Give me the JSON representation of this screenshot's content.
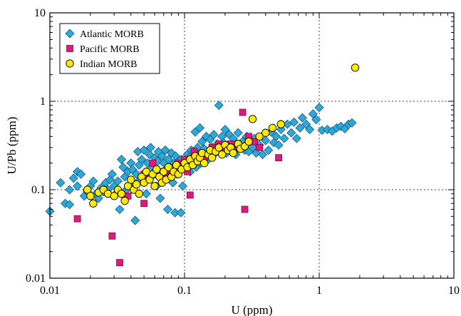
{
  "chart_data": {
    "type": "scatter",
    "title": "",
    "xlabel": "U (ppm)",
    "ylabel": "U/Pb (ppm)",
    "x_scale": "log",
    "y_scale": "log",
    "xlim": [
      0.01,
      10
    ],
    "ylim": [
      0.01,
      10
    ],
    "x_ticks": [
      "0.01",
      "0.1",
      "1",
      "10"
    ],
    "y_ticks": [
      "0.01",
      "0.1",
      "1",
      "10"
    ],
    "grid": "dotted at decades",
    "legend_position": "top-left",
    "series": [
      {
        "name": "Atlantic MORB",
        "marker": "diamond",
        "color": "#2fa8d8",
        "points": [
          [
            0.01,
            0.057
          ],
          [
            0.012,
            0.12
          ],
          [
            0.013,
            0.07
          ],
          [
            0.014,
            0.068
          ],
          [
            0.014,
            0.1
          ],
          [
            0.015,
            0.135
          ],
          [
            0.016,
            0.16
          ],
          [
            0.016,
            0.11
          ],
          [
            0.017,
            0.15
          ],
          [
            0.018,
            0.085
          ],
          [
            0.019,
            0.095
          ],
          [
            0.02,
            0.11
          ],
          [
            0.021,
            0.125
          ],
          [
            0.022,
            0.09
          ],
          [
            0.023,
            0.08
          ],
          [
            0.024,
            0.105
          ],
          [
            0.025,
            0.095
          ],
          [
            0.026,
            0.12
          ],
          [
            0.027,
            0.1
          ],
          [
            0.028,
            0.13
          ],
          [
            0.029,
            0.15
          ],
          [
            0.03,
            0.11
          ],
          [
            0.031,
            0.09
          ],
          [
            0.032,
            0.125
          ],
          [
            0.033,
            0.06
          ],
          [
            0.034,
            0.22
          ],
          [
            0.035,
            0.18
          ],
          [
            0.036,
            0.14
          ],
          [
            0.037,
            0.1
          ],
          [
            0.038,
            0.16
          ],
          [
            0.04,
            0.2
          ],
          [
            0.041,
            0.17
          ],
          [
            0.042,
            0.12
          ],
          [
            0.043,
            0.045
          ],
          [
            0.044,
            0.15
          ],
          [
            0.045,
            0.27
          ],
          [
            0.046,
            0.19
          ],
          [
            0.047,
            0.13
          ],
          [
            0.048,
            0.22
          ],
          [
            0.05,
            0.28
          ],
          [
            0.051,
            0.15
          ],
          [
            0.052,
            0.09
          ],
          [
            0.053,
            0.2
          ],
          [
            0.055,
            0.25
          ],
          [
            0.056,
            0.3
          ],
          [
            0.057,
            0.14
          ],
          [
            0.058,
            0.18
          ],
          [
            0.06,
            0.23
          ],
          [
            0.062,
            0.11
          ],
          [
            0.063,
            0.21
          ],
          [
            0.064,
            0.27
          ],
          [
            0.065,
            0.16
          ],
          [
            0.066,
            0.08
          ],
          [
            0.068,
            0.24
          ],
          [
            0.07,
            0.2
          ],
          [
            0.071,
            0.13
          ],
          [
            0.072,
            0.28
          ],
          [
            0.074,
            0.17
          ],
          [
            0.075,
            0.06
          ],
          [
            0.076,
            0.22
          ],
          [
            0.078,
            0.15
          ],
          [
            0.08,
            0.26
          ],
          [
            0.082,
            0.12
          ],
          [
            0.084,
            0.2
          ],
          [
            0.085,
            0.055
          ],
          [
            0.086,
            0.24
          ],
          [
            0.088,
            0.15
          ],
          [
            0.09,
            0.21
          ],
          [
            0.092,
            0.17
          ],
          [
            0.094,
            0.055
          ],
          [
            0.095,
            0.22
          ],
          [
            0.097,
            0.11
          ],
          [
            0.1,
            0.2
          ],
          [
            0.102,
            0.18
          ],
          [
            0.105,
            0.25
          ],
          [
            0.108,
            0.23
          ],
          [
            0.11,
            0.16
          ],
          [
            0.112,
            0.28
          ],
          [
            0.115,
            0.2
          ],
          [
            0.118,
            0.27
          ],
          [
            0.12,
            0.45
          ],
          [
            0.122,
            0.18
          ],
          [
            0.125,
            0.3
          ],
          [
            0.128,
            0.25
          ],
          [
            0.13,
            0.5
          ],
          [
            0.132,
            0.2
          ],
          [
            0.135,
            0.35
          ],
          [
            0.14,
            0.29
          ],
          [
            0.145,
            0.4
          ],
          [
            0.15,
            0.22
          ],
          [
            0.155,
            0.37
          ],
          [
            0.16,
            0.3
          ],
          [
            0.165,
            0.42
          ],
          [
            0.17,
            0.26
          ],
          [
            0.175,
            0.33
          ],
          [
            0.18,
            0.9
          ],
          [
            0.185,
            0.28
          ],
          [
            0.19,
            0.4
          ],
          [
            0.195,
            0.34
          ],
          [
            0.2,
            0.48
          ],
          [
            0.205,
            0.26
          ],
          [
            0.21,
            0.32
          ],
          [
            0.215,
            0.42
          ],
          [
            0.22,
            0.3
          ],
          [
            0.23,
            0.38
          ],
          [
            0.24,
            0.25
          ],
          [
            0.25,
            0.44
          ],
          [
            0.26,
            0.31
          ],
          [
            0.27,
            0.35
          ],
          [
            0.28,
            0.28
          ],
          [
            0.29,
            0.4
          ],
          [
            0.3,
            0.27
          ],
          [
            0.31,
            0.35
          ],
          [
            0.32,
            0.3
          ],
          [
            0.33,
            0.38
          ],
          [
            0.34,
            0.26
          ],
          [
            0.36,
            0.32
          ],
          [
            0.38,
            0.25
          ],
          [
            0.4,
            0.36
          ],
          [
            0.42,
            0.28
          ],
          [
            0.44,
            0.45
          ],
          [
            0.46,
            0.34
          ],
          [
            0.48,
            0.4
          ],
          [
            0.5,
            0.32
          ],
          [
            0.52,
            0.48
          ],
          [
            0.55,
            0.38
          ],
          [
            0.58,
            0.55
          ],
          [
            0.62,
            0.44
          ],
          [
            0.65,
            0.58
          ],
          [
            0.68,
            0.38
          ],
          [
            0.72,
            0.5
          ],
          [
            0.75,
            0.65
          ],
          [
            0.8,
            0.55
          ],
          [
            0.85,
            0.48
          ],
          [
            0.9,
            0.72
          ],
          [
            0.95,
            0.62
          ],
          [
            1.0,
            0.85
          ],
          [
            1.05,
            0.47
          ],
          [
            1.15,
            0.48
          ],
          [
            1.25,
            0.46
          ],
          [
            1.35,
            0.5
          ],
          [
            1.45,
            0.52
          ],
          [
            1.55,
            0.49
          ],
          [
            1.65,
            0.55
          ],
          [
            1.75,
            0.57
          ]
        ]
      },
      {
        "name": "Pacific MORB",
        "marker": "square",
        "color": "#e0197d",
        "points": [
          [
            0.016,
            0.047
          ],
          [
            0.029,
            0.03
          ],
          [
            0.033,
            0.015
          ],
          [
            0.038,
            0.085
          ],
          [
            0.05,
            0.15
          ],
          [
            0.05,
            0.07
          ],
          [
            0.058,
            0.2
          ],
          [
            0.072,
            0.14
          ],
          [
            0.08,
            0.16
          ],
          [
            0.09,
            0.2
          ],
          [
            0.1,
            0.22
          ],
          [
            0.105,
            0.16
          ],
          [
            0.11,
            0.087
          ],
          [
            0.118,
            0.27
          ],
          [
            0.13,
            0.25
          ],
          [
            0.14,
            0.22
          ],
          [
            0.16,
            0.3
          ],
          [
            0.18,
            0.33
          ],
          [
            0.2,
            0.28
          ],
          [
            0.22,
            0.33
          ],
          [
            0.25,
            0.3
          ],
          [
            0.27,
            0.75
          ],
          [
            0.28,
            0.06
          ],
          [
            0.3,
            0.4
          ],
          [
            0.33,
            0.35
          ],
          [
            0.36,
            0.3
          ],
          [
            0.5,
            0.23
          ]
        ]
      },
      {
        "name": "Indian MORB",
        "marker": "circle",
        "color": "#ffea00",
        "points": [
          [
            0.019,
            0.1
          ],
          [
            0.02,
            0.085
          ],
          [
            0.021,
            0.07
          ],
          [
            0.023,
            0.093
          ],
          [
            0.025,
            0.1
          ],
          [
            0.027,
            0.09
          ],
          [
            0.03,
            0.085
          ],
          [
            0.032,
            0.1
          ],
          [
            0.034,
            0.09
          ],
          [
            0.036,
            0.075
          ],
          [
            0.038,
            0.11
          ],
          [
            0.04,
            0.13
          ],
          [
            0.042,
            0.1
          ],
          [
            0.044,
            0.115
          ],
          [
            0.046,
            0.09
          ],
          [
            0.048,
            0.14
          ],
          [
            0.05,
            0.12
          ],
          [
            0.052,
            0.16
          ],
          [
            0.055,
            0.13
          ],
          [
            0.058,
            0.15
          ],
          [
            0.06,
            0.11
          ],
          [
            0.062,
            0.17
          ],
          [
            0.065,
            0.14
          ],
          [
            0.068,
            0.12
          ],
          [
            0.07,
            0.16
          ],
          [
            0.073,
            0.13
          ],
          [
            0.076,
            0.18
          ],
          [
            0.08,
            0.14
          ],
          [
            0.083,
            0.16
          ],
          [
            0.087,
            0.19
          ],
          [
            0.09,
            0.15
          ],
          [
            0.095,
            0.17
          ],
          [
            0.1,
            0.2
          ],
          [
            0.105,
            0.18
          ],
          [
            0.11,
            0.22
          ],
          [
            0.115,
            0.19
          ],
          [
            0.12,
            0.24
          ],
          [
            0.125,
            0.21
          ],
          [
            0.13,
            0.23
          ],
          [
            0.135,
            0.26
          ],
          [
            0.14,
            0.2
          ],
          [
            0.15,
            0.25
          ],
          [
            0.155,
            0.28
          ],
          [
            0.16,
            0.23
          ],
          [
            0.17,
            0.27
          ],
          [
            0.18,
            0.3
          ],
          [
            0.19,
            0.25
          ],
          [
            0.2,
            0.32
          ],
          [
            0.21,
            0.28
          ],
          [
            0.22,
            0.3
          ],
          [
            0.23,
            0.26
          ],
          [
            0.25,
            0.33
          ],
          [
            0.26,
            0.29
          ],
          [
            0.28,
            0.31
          ],
          [
            0.3,
            0.35
          ],
          [
            0.32,
            0.63
          ],
          [
            0.36,
            0.4
          ],
          [
            0.4,
            0.44
          ],
          [
            0.45,
            0.5
          ],
          [
            0.52,
            0.55
          ],
          [
            1.85,
            2.4
          ]
        ]
      }
    ]
  }
}
